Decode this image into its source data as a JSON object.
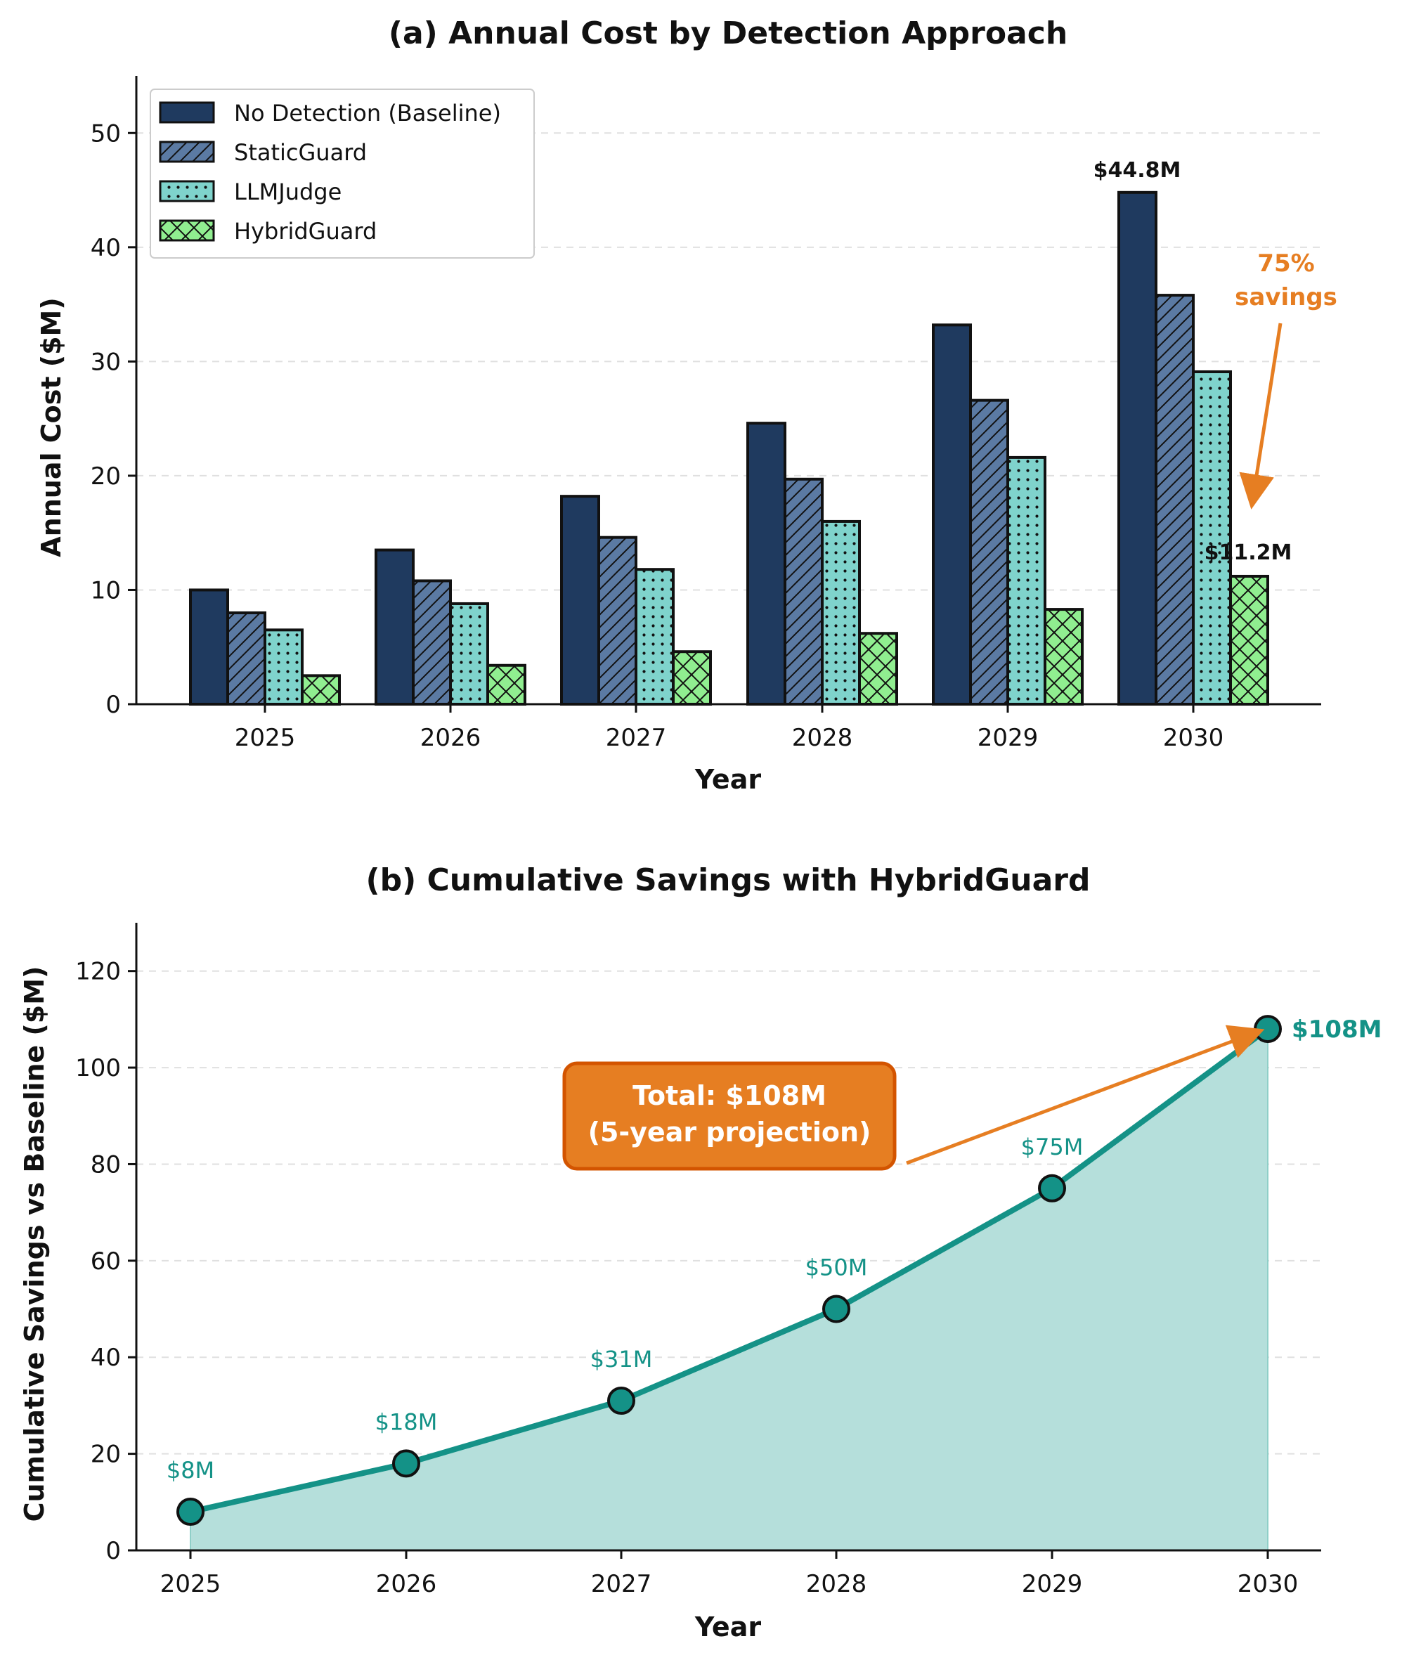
{
  "colors": {
    "baseline": "#1f3a5f",
    "staticguard": "#5b7aa3",
    "llmjudge": "#7fd3cc",
    "hybridguard": "#90ee90",
    "teal": "#149287",
    "teal_fill": "#b5dfdb",
    "orange": "#e67e22",
    "orange_border": "#d35400",
    "grid": "#e0e0e0"
  },
  "chart_data": [
    {
      "type": "bar",
      "title": "(a) Annual Cost by Detection Approach",
      "xlabel": "Year",
      "ylabel": "Annual Cost ($M)",
      "ylim": [
        0,
        55
      ],
      "yticks": [
        0,
        10,
        20,
        30,
        40,
        50
      ],
      "grid": true,
      "legend_position": "top-left",
      "categories": [
        "2025",
        "2026",
        "2027",
        "2028",
        "2029",
        "2030"
      ],
      "series": [
        {
          "name": "No Detection (Baseline)",
          "pattern": "solid",
          "values": [
            10.0,
            13.5,
            18.2,
            24.6,
            33.2,
            44.8
          ]
        },
        {
          "name": "StaticGuard",
          "pattern": "diagonal",
          "values": [
            8.0,
            10.8,
            14.6,
            19.7,
            26.6,
            35.8
          ]
        },
        {
          "name": "LLMJudge",
          "pattern": "dots",
          "values": [
            6.5,
            8.8,
            11.8,
            16.0,
            21.6,
            29.1
          ]
        },
        {
          "name": "HybridGuard",
          "pattern": "crosshatch",
          "values": [
            2.5,
            3.4,
            4.6,
            6.2,
            8.3,
            11.2
          ]
        }
      ],
      "annotations": {
        "top_label": "$44.8M",
        "bottom_label": "$11.2M",
        "savings_line1": "75%",
        "savings_line2": "savings"
      }
    },
    {
      "type": "area",
      "title": "(b) Cumulative Savings with HybridGuard",
      "xlabel": "Year",
      "ylabel": "Cumulative Savings vs Baseline ($M)",
      "ylim": [
        0,
        130
      ],
      "yticks": [
        0,
        20,
        40,
        60,
        80,
        100,
        120
      ],
      "grid": true,
      "x": [
        "2025",
        "2026",
        "2027",
        "2028",
        "2029",
        "2030"
      ],
      "values": [
        8,
        18,
        31,
        50,
        75,
        108
      ],
      "point_labels": [
        "$8M",
        "$18M",
        "$31M",
        "$50M",
        "$75M",
        "$108M"
      ],
      "callout_line1": "Total: $108M",
      "callout_line2": "(5-year projection)"
    }
  ]
}
